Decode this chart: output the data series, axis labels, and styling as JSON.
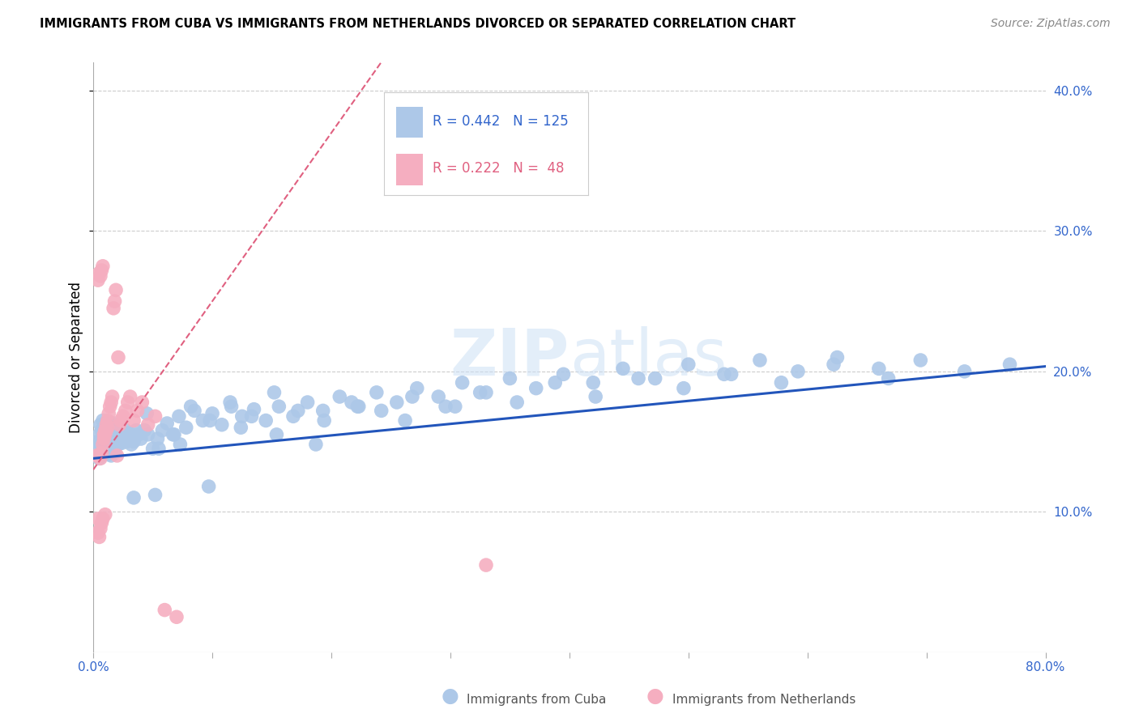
{
  "title": "IMMIGRANTS FROM CUBA VS IMMIGRANTS FROM NETHERLANDS DIVORCED OR SEPARATED CORRELATION CHART",
  "source": "Source: ZipAtlas.com",
  "ylabel": "Divorced or Separated",
  "xlim": [
    0.0,
    0.8
  ],
  "ylim": [
    0.0,
    0.42
  ],
  "cuba_R": 0.442,
  "cuba_N": 125,
  "netherlands_R": 0.222,
  "netherlands_N": 48,
  "cuba_color": "#adc8e8",
  "netherlands_color": "#f5aec0",
  "cuba_line_color": "#2255bb",
  "netherlands_line_color": "#e06080",
  "watermark": "ZIPatlas",
  "cuba_line_intercept": 0.138,
  "cuba_line_slope": 0.082,
  "netherlands_line_intercept": 0.13,
  "netherlands_line_slope": 1.2,
  "cuba_scatter_x": [
    0.003,
    0.004,
    0.005,
    0.005,
    0.006,
    0.006,
    0.007,
    0.007,
    0.008,
    0.008,
    0.009,
    0.009,
    0.01,
    0.01,
    0.011,
    0.011,
    0.012,
    0.012,
    0.013,
    0.013,
    0.014,
    0.014,
    0.015,
    0.015,
    0.016,
    0.016,
    0.017,
    0.018,
    0.018,
    0.019,
    0.02,
    0.021,
    0.022,
    0.023,
    0.024,
    0.025,
    0.026,
    0.027,
    0.028,
    0.029,
    0.03,
    0.032,
    0.034,
    0.036,
    0.038,
    0.04,
    0.043,
    0.046,
    0.05,
    0.054,
    0.058,
    0.062,
    0.067,
    0.072,
    0.078,
    0.085,
    0.092,
    0.1,
    0.108,
    0.116,
    0.125,
    0.135,
    0.145,
    0.156,
    0.168,
    0.18,
    0.193,
    0.207,
    0.222,
    0.238,
    0.255,
    0.272,
    0.29,
    0.31,
    0.33,
    0.35,
    0.372,
    0.395,
    0.42,
    0.445,
    0.472,
    0.5,
    0.53,
    0.56,
    0.592,
    0.625,
    0.66,
    0.695,
    0.732,
    0.77,
    0.032,
    0.045,
    0.055,
    0.068,
    0.082,
    0.098,
    0.115,
    0.133,
    0.152,
    0.172,
    0.194,
    0.217,
    0.242,
    0.268,
    0.296,
    0.325,
    0.356,
    0.388,
    0.422,
    0.458,
    0.496,
    0.536,
    0.578,
    0.622,
    0.668,
    0.034,
    0.052,
    0.073,
    0.097,
    0.124,
    0.154,
    0.187,
    0.223,
    0.262,
    0.304
  ],
  "cuba_scatter_y": [
    0.143,
    0.15,
    0.138,
    0.155,
    0.148,
    0.162,
    0.14,
    0.158,
    0.145,
    0.165,
    0.142,
    0.16,
    0.147,
    0.163,
    0.144,
    0.161,
    0.146,
    0.159,
    0.141,
    0.157,
    0.143,
    0.162,
    0.14,
    0.158,
    0.145,
    0.163,
    0.147,
    0.142,
    0.16,
    0.148,
    0.152,
    0.148,
    0.156,
    0.153,
    0.149,
    0.155,
    0.152,
    0.158,
    0.15,
    0.156,
    0.153,
    0.155,
    0.15,
    0.158,
    0.155,
    0.152,
    0.158,
    0.155,
    0.145,
    0.152,
    0.158,
    0.163,
    0.155,
    0.168,
    0.16,
    0.172,
    0.165,
    0.17,
    0.162,
    0.175,
    0.168,
    0.173,
    0.165,
    0.175,
    0.168,
    0.178,
    0.172,
    0.182,
    0.175,
    0.185,
    0.178,
    0.188,
    0.182,
    0.192,
    0.185,
    0.195,
    0.188,
    0.198,
    0.192,
    0.202,
    0.195,
    0.205,
    0.198,
    0.208,
    0.2,
    0.21,
    0.202,
    0.208,
    0.2,
    0.205,
    0.148,
    0.17,
    0.145,
    0.155,
    0.175,
    0.165,
    0.178,
    0.168,
    0.185,
    0.172,
    0.165,
    0.178,
    0.172,
    0.182,
    0.175,
    0.185,
    0.178,
    0.192,
    0.182,
    0.195,
    0.188,
    0.198,
    0.192,
    0.205,
    0.195,
    0.11,
    0.112,
    0.148,
    0.118,
    0.16,
    0.155,
    0.148,
    0.175,
    0.165,
    0.175
  ],
  "netherlands_scatter_x": [
    0.003,
    0.004,
    0.004,
    0.005,
    0.005,
    0.006,
    0.006,
    0.007,
    0.007,
    0.008,
    0.008,
    0.009,
    0.01,
    0.01,
    0.011,
    0.012,
    0.013,
    0.014,
    0.015,
    0.016,
    0.017,
    0.018,
    0.019,
    0.02,
    0.021,
    0.022,
    0.023,
    0.025,
    0.027,
    0.029,
    0.031,
    0.034,
    0.037,
    0.041,
    0.046,
    0.052,
    0.06,
    0.07,
    0.33,
    0.004,
    0.005,
    0.006,
    0.007,
    0.008,
    0.009,
    0.01,
    0.011,
    0.012
  ],
  "netherlands_scatter_y": [
    0.14,
    0.085,
    0.095,
    0.14,
    0.082,
    0.138,
    0.088,
    0.142,
    0.092,
    0.148,
    0.095,
    0.155,
    0.158,
    0.098,
    0.162,
    0.165,
    0.17,
    0.175,
    0.178,
    0.182,
    0.245,
    0.25,
    0.258,
    0.14,
    0.21,
    0.162,
    0.165,
    0.168,
    0.172,
    0.178,
    0.182,
    0.165,
    0.172,
    0.178,
    0.162,
    0.168,
    0.03,
    0.025,
    0.062,
    0.265,
    0.27,
    0.268,
    0.272,
    0.275,
    0.152,
    0.155,
    0.158,
    0.16
  ]
}
